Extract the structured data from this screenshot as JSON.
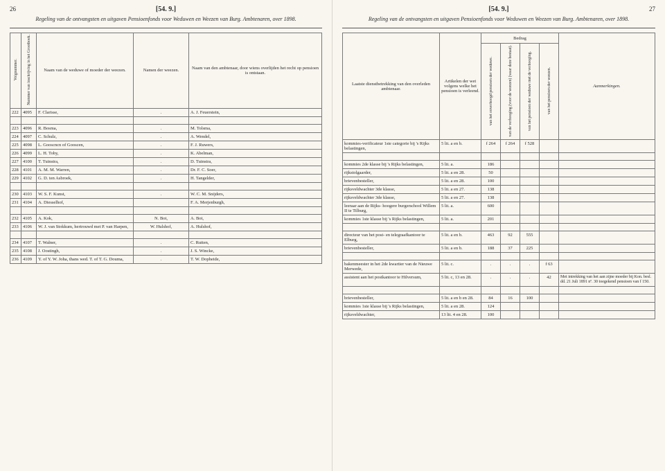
{
  "left": {
    "pagenum": "26",
    "docnumber": "[54. 9.]",
    "title": "Regeling van de ontvangsten en uitgaven Pensioenfonds voor Weduwen en Weezen van Burg. Ambtenaren, over 1898.",
    "headers": {
      "col1": "Volgnummer.",
      "col2": "Nummer van inschrijving in het Grootboek.",
      "col3": "Naam van de weduwe of moeder der weezen.",
      "col4": "Namen der weezen.",
      "col5": "Naam van den ambtenaar, door wiens overlijden het recht op pensioen is ontstaan."
    },
    "rows": [
      {
        "n": "222",
        "g": "4095",
        "w": "F. Clarisse,",
        "wz": ".",
        "a": "A. J. Feuerstein,"
      },
      {
        "n": "223",
        "g": "4096",
        "w": "R. Bosma,",
        "wz": ".",
        "a": "M. Tolsma,"
      },
      {
        "n": "224",
        "g": "4097",
        "w": "C. Schulz,",
        "wz": ".",
        "a": "A. Wendel,"
      },
      {
        "n": "225",
        "g": "4098",
        "w": "L. Gooscncn of Gooscen,",
        "wz": ".",
        "a": "F. J. Ruwers,"
      },
      {
        "n": "226",
        "g": "4099",
        "w": "L. H. Toby,",
        "wz": ".",
        "a": "K. Abelman,"
      },
      {
        "n": "227",
        "g": "4100",
        "w": "T. Tuinstra,",
        "wz": ".",
        "a": "D. Tuinstra,"
      },
      {
        "n": "228",
        "g": "4101",
        "w": "A. M. M. Warren,",
        "wz": ".",
        "a": "Dr. F. C. Soer,"
      },
      {
        "n": "229",
        "g": "4102",
        "w": "G. D. ten Asbroek,",
        "wz": ".",
        "a": "H. Tangelder,"
      },
      {
        "n": "230",
        "g": "4103",
        "w": "W. S. F. Kunst,",
        "wz": ".",
        "a": "W. C. M. Snijders,"
      },
      {
        "n": "231",
        "g": "4104",
        "w": "A. Diesselhof,",
        "wz": "",
        "a": "F. A. Merjenburgh,"
      },
      {
        "n": "232",
        "g": "4105",
        "w": "A. Kok,",
        "wz": "N. Bot,",
        "a": "A. Bot,"
      },
      {
        "n": "233",
        "g": "4106",
        "w": "W. J. van Stokkum, hertrouwd met P. van Harpen,",
        "wz": "W. Hulshof,",
        "a": "A. Hulshof,"
      },
      {
        "n": "234",
        "g": "4107",
        "w": "T. Walner,",
        "wz": ".",
        "a": "C. Rutten,"
      },
      {
        "n": "235",
        "g": "4108",
        "w": "J. Oostingh,",
        "wz": ".",
        "a": "J. S. Wincke,"
      },
      {
        "n": "236",
        "g": "4109",
        "w": "Y. of Y. W. Joha, thans wed. T. of T. G. Douma,",
        "wz": ".",
        "a": "T. W. Dopheide,"
      }
    ]
  },
  "right": {
    "pagenum": "27",
    "docnumber": "[54. 9.]",
    "title": "Regeling van de ontvangsten en uitgaven Pensioenfonds voor Weduwen en Weezen van Burg. Ambtenaren, over 1898.",
    "bedrag_header": "Bedrag",
    "headers": {
      "col1": "Laatste dienstbetrekking van den overleden ambtenaar.",
      "col2": "Artikelen der wet volgens welke het pensioen is verleend.",
      "col3": "van het onverhoogd pensioen der weduwe.",
      "col4": "van de verhooging (voor de weezen) (waar deze bestaat).",
      "col5": "van het pensioen der weduwe met de verhooging.",
      "col6": "van het pensioen der weezen.",
      "col7": "Aanmerkingen."
    },
    "rows": [
      {
        "d": "kommies-verificateur 1ste categorie bij 's Rijks belastingen,",
        "art": "5 lit. a en b.",
        "b1": "f 264",
        "b2": "f 264",
        "b3": "f 528",
        "b4": "",
        "r": ""
      },
      {
        "d": "kommies 2de klasse bij 's Rijks belastingen,",
        "art": "5 lit. a.",
        "b1": "186",
        "b2": "",
        "b3": "",
        "b4": "",
        "r": ""
      },
      {
        "d": "rijkstolgaarder,",
        "art": "5 lit. a en 28.",
        "b1": "50",
        "b2": "",
        "b3": "",
        "b4": "",
        "r": ""
      },
      {
        "d": "brievenbesteller,",
        "art": "5 lit. a en 28.",
        "b1": "100",
        "b2": "",
        "b3": "",
        "b4": "",
        "r": ""
      },
      {
        "d": "rijksveldwachter 3de klasse,",
        "art": "5 lit. a en 27.",
        "b1": "138",
        "b2": "",
        "b3": "",
        "b4": "",
        "r": ""
      },
      {
        "d": "rijksveldwachter 3de klasse,",
        "art": "5 lit. a en 27.",
        "b1": "138",
        "b2": "",
        "b3": "",
        "b4": "",
        "r": ""
      },
      {
        "d": "leeraar aan de Rijks- hoogere burgerschool Willem II te Tilburg,",
        "art": "5 lit. a.",
        "b1": "600",
        "b2": "",
        "b3": "",
        "b4": "",
        "r": ""
      },
      {
        "d": "kommies 1ste klasse bij 's Rijks belastingen,",
        "art": "5 lit. a.",
        "b1": "201",
        "b2": "",
        "b3": "",
        "b4": "",
        "r": ""
      },
      {
        "d": "directeur van het post- en telegraafkantoor te Elburg,",
        "art": "5 lit. a en b.",
        "b1": "463",
        "b2": "92",
        "b3": "555",
        "b4": "",
        "r": ""
      },
      {
        "d": "brievenbesteller,",
        "art": "5 lit. a en b.",
        "b1": "188",
        "b2": "37",
        "b3": "225",
        "b4": "",
        "r": ""
      },
      {
        "d": "bakenmeester in het 2de kwartier van de Nieuwe Merwede,",
        "art": "5 lit. c.",
        "b1": ".",
        "b2": ".",
        "b3": ".",
        "b4": "f 63",
        "r": ""
      },
      {
        "d": "assistent aan het postkantoor te Hilversum,",
        "art": "5 lit. c, 13 en 28.",
        "b1": ".",
        "b2": ".",
        "b3": ".",
        "b4": "42",
        "r": "Met intrekking van het aan zijne moeder bij Kon. besl. dd. 21 Juli 1891 nº. 30 toegekend pensioen van f 150."
      },
      {
        "d": "brievenbesteller,",
        "art": "5 lit. a en b en 28.",
        "b1": "84",
        "b2": "16",
        "b3": "100",
        "b4": "",
        "r": ""
      },
      {
        "d": "kommies 1ste klasse bij 's Rijks belastingen,",
        "art": "5 lit. a en 28.",
        "b1": "124",
        "b2": "",
        "b3": "",
        "b4": "",
        "r": ""
      },
      {
        "d": "rijksveldwachter,",
        "art": "13 lit. 4 en 28.",
        "b1": "100",
        "b2": "",
        "b3": "",
        "b4": "",
        "r": ""
      }
    ]
  }
}
